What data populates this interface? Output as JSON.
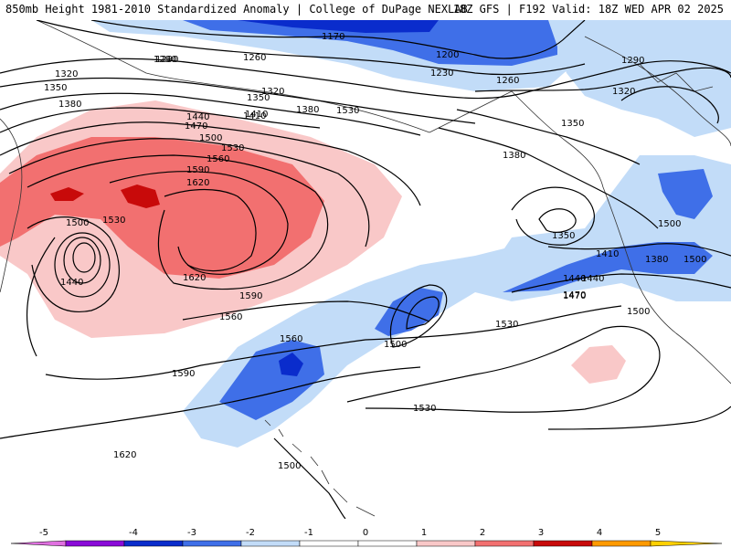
{
  "title": {
    "left": "850mb Height 1981-2010 Standardized Anomaly | College of DuPage NEXLAB",
    "right": "18Z GFS | F192 Valid: 18Z WED APR 02 2025"
  },
  "colors": {
    "neg5": "#e070e0",
    "neg4": "#8a0ad8",
    "neg3": "#0a2ccc",
    "neg2": "#3f6fe8",
    "neg1": "#c2dcf8",
    "zero": "#ffffff",
    "pos1": "#f9c8c8",
    "pos2": "#f27070",
    "pos3": "#c80a0a",
    "pos4": "#ff9a00",
    "pos5": "#ffd000",
    "contour": "#000000",
    "coast": "#333333"
  },
  "contour_labels": [
    "1170",
    "1200",
    "1230",
    "1260",
    "1290",
    "1320",
    "1350",
    "1380",
    "1410",
    "1440",
    "1470",
    "1500",
    "1530",
    "1560",
    "1590",
    "1620",
    "1290",
    "1260",
    "1290",
    "1320",
    "1350",
    "1380",
    "1410",
    "1440",
    "1470",
    "1500",
    "1530",
    "1560",
    "1590",
    "1620",
    "1500",
    "1530",
    "1440",
    "1320",
    "1350",
    "1380",
    "1350",
    "1380",
    "1410",
    "1440",
    "1470",
    "1500",
    "1530",
    "1560",
    "1590",
    "1620",
    "1500",
    "1530",
    "1500",
    "1500"
  ],
  "legend": {
    "ticks": [
      "-5",
      "-4",
      "-3",
      "-2",
      "-1",
      "0",
      "1",
      "2",
      "3",
      "4",
      "5"
    ]
  }
}
